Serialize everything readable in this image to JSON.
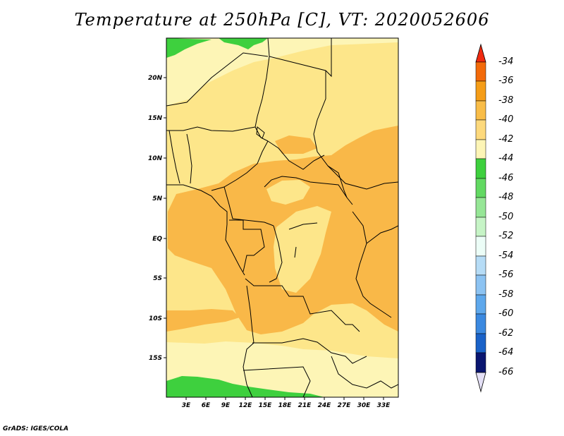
{
  "title": "Temperature at 250hPa [C], VT: 2020052606",
  "credit": "GrADS: IGES/COLA",
  "map": {
    "lon_labels": [
      "3E",
      "6E",
      "9E",
      "12E",
      "15E",
      "18E",
      "21E",
      "24E",
      "27E",
      "30E",
      "33E"
    ],
    "lat_labels": [
      "20N",
      "15N",
      "10N",
      "5N",
      "EQ",
      "5S",
      "10S",
      "15S"
    ],
    "colors": {
      "c44_42": "#fdf5b6",
      "c42_40": "#fde68a",
      "c40_38": "#f9b848",
      "green": "#3ed03e",
      "border": "#000000"
    }
  },
  "colorbar": {
    "labels": [
      "-34",
      "-36",
      "-38",
      "-40",
      "-42",
      "-44",
      "-46",
      "-48",
      "-50",
      "-52",
      "-54",
      "-56",
      "-58",
      "-60",
      "-62",
      "-64",
      "-66"
    ],
    "colors": [
      "#f02a10",
      "#f36a0a",
      "#f59d18",
      "#f9bd48",
      "#fdd97c",
      "#fdf5b6",
      "#3ed03e",
      "#62d962",
      "#96e696",
      "#c6f4c6",
      "#ecfdf7",
      "#b6dcf6",
      "#8cc3f2",
      "#5ea8ec",
      "#3b89e0",
      "#1a62c8",
      "#0a38a8",
      "#0a1670",
      "#e4e0f6"
    ]
  }
}
